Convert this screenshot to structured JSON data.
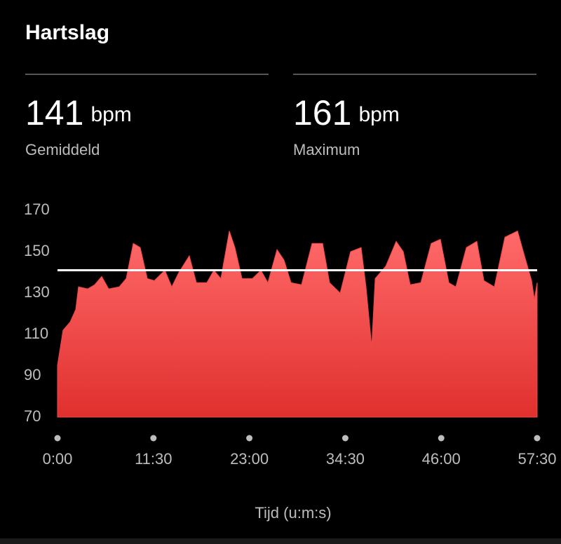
{
  "header": {
    "title": "Hartslag"
  },
  "stats": [
    {
      "value": "141",
      "unit": "bpm",
      "label": "Gemiddeld"
    },
    {
      "value": "161",
      "unit": "bpm",
      "label": "Maximum"
    }
  ],
  "chart_data": {
    "type": "area",
    "x_label": "Tijd (u:m:s)",
    "x": [
      0,
      40,
      91,
      131,
      151,
      217,
      267,
      318,
      368,
      444,
      494,
      545,
      595,
      646,
      696,
      772,
      822,
      873,
      948,
      999,
      1074,
      1125,
      1175,
      1236,
      1276,
      1327,
      1402,
      1463,
      1513,
      1579,
      1629,
      1680,
      1755,
      1831,
      1907,
      1957,
      2033,
      2108,
      2184,
      2219,
      2260,
      2285,
      2361,
      2436,
      2487,
      2537,
      2613,
      2688,
      2754,
      2815,
      2865,
      2941,
      3016,
      3067,
      3142,
      3218,
      3309,
      3359,
      3410,
      3430,
      3450
    ],
    "values": [
      95,
      112,
      116,
      122,
      133,
      132,
      134,
      138,
      132,
      133,
      137,
      154,
      152,
      137,
      136,
      141,
      133,
      140,
      148,
      135,
      135,
      141,
      137,
      160,
      152,
      137,
      137,
      141,
      135,
      151,
      146,
      135,
      134,
      154,
      154,
      135,
      130,
      150,
      152,
      133,
      104,
      137,
      143,
      155,
      150,
      134,
      135,
      154,
      156,
      135,
      133,
      152,
      155,
      136,
      133,
      157,
      160,
      148,
      136,
      127,
      135
    ],
    "reference_line": 141,
    "color": "#f04848",
    "xlim": [
      0,
      3450
    ],
    "xticks": [
      {
        "value": 0,
        "label": "0:00"
      },
      {
        "value": 690,
        "label": "11:30"
      },
      {
        "value": 1380,
        "label": "23:00"
      },
      {
        "value": 2070,
        "label": "34:30"
      },
      {
        "value": 2760,
        "label": "46:00"
      },
      {
        "value": 3450,
        "label": "57:30"
      }
    ],
    "ylim": [
      70,
      170
    ],
    "yticks": [
      70,
      90,
      110,
      130,
      150,
      170
    ]
  }
}
